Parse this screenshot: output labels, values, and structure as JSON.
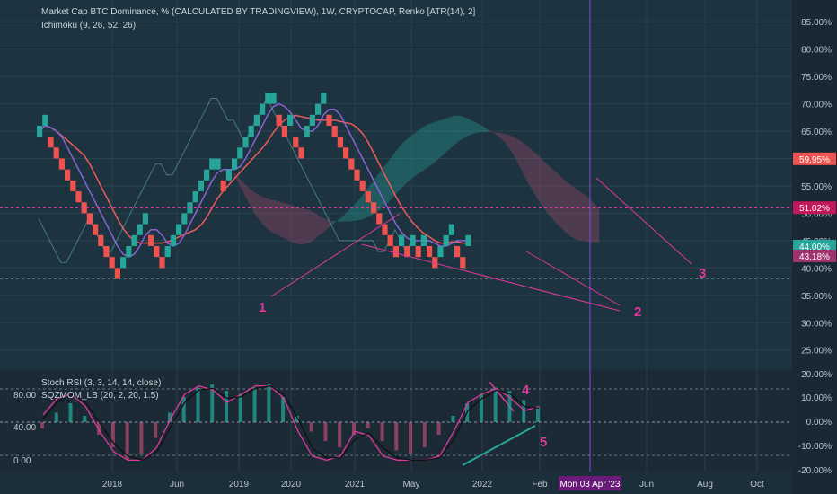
{
  "header": {
    "title": "Market Cap BTC Dominance, % (CALCULATED BY TRADINGVIEW), 1W, CRYPTOCAP, Renko [ATR(14), 2]",
    "indicator": "Ichimoku (9, 26, 52, 26)"
  },
  "lower_panel": {
    "stoch_label": "Stoch RSI (3, 3, 14, 14, close)",
    "mom_label": "SQZMOM_LB (20, 2, 20, 1.5)"
  },
  "colors": {
    "background": "#1b2e3a",
    "up_brick": "#26a69a",
    "down_brick": "#ef5350",
    "annotation": "#e0389c",
    "cloud_bull": "#26a69a",
    "cloud_bear": "#b04a6e",
    "ichimoku_base": "#f05a5a",
    "ichimoku_conv": "#8a63d2",
    "lagging": "#5fb0a8"
  },
  "chart_data": [
    {
      "type": "renko",
      "title": "Market Cap BTC Dominance, % (CALCULATED BY TRADINGVIEW), 1W, CRYPTOCAP, Renko [ATR(14), 2]",
      "x_ticks": [
        "2018",
        "Jun",
        "2019",
        "2020",
        "2021",
        "May",
        "2022",
        "Feb",
        "Jun",
        "Aug",
        "Oct"
      ],
      "y_ticks": [
        "85.00%",
        "80.00%",
        "75.00%",
        "70.00%",
        "65.00%",
        "60.00%",
        "55.00%",
        "50.00%",
        "45.00%",
        "40.00%",
        "35.00%",
        "30.00%",
        "25.00%"
      ],
      "ylim": [
        22,
        87
      ],
      "brick_size": 2,
      "bricks": [
        {
          "v": 64,
          "d": "up"
        },
        {
          "v": 66,
          "d": "up"
        },
        {
          "v": 64,
          "d": "down"
        },
        {
          "v": 62,
          "d": "down"
        },
        {
          "v": 60,
          "d": "down"
        },
        {
          "v": 58,
          "d": "down"
        },
        {
          "v": 56,
          "d": "down"
        },
        {
          "v": 54,
          "d": "down"
        },
        {
          "v": 52,
          "d": "down"
        },
        {
          "v": 50,
          "d": "down"
        },
        {
          "v": 48,
          "d": "down"
        },
        {
          "v": 46,
          "d": "down"
        },
        {
          "v": 44,
          "d": "down"
        },
        {
          "v": 42,
          "d": "down"
        },
        {
          "v": 40,
          "d": "down"
        },
        {
          "v": 40,
          "d": "up"
        },
        {
          "v": 42,
          "d": "up"
        },
        {
          "v": 44,
          "d": "up"
        },
        {
          "v": 46,
          "d": "up"
        },
        {
          "v": 48,
          "d": "up"
        },
        {
          "v": 46,
          "d": "down"
        },
        {
          "v": 44,
          "d": "down"
        },
        {
          "v": 42,
          "d": "down"
        },
        {
          "v": 42,
          "d": "up"
        },
        {
          "v": 44,
          "d": "up"
        },
        {
          "v": 46,
          "d": "up"
        },
        {
          "v": 48,
          "d": "up"
        },
        {
          "v": 50,
          "d": "up"
        },
        {
          "v": 52,
          "d": "up"
        },
        {
          "v": 54,
          "d": "up"
        },
        {
          "v": 56,
          "d": "up"
        },
        {
          "v": 58,
          "d": "up"
        },
        {
          "v": 58,
          "d": "up"
        },
        {
          "v": 56,
          "d": "down"
        },
        {
          "v": 56,
          "d": "up"
        },
        {
          "v": 58,
          "d": "up"
        },
        {
          "v": 60,
          "d": "up"
        },
        {
          "v": 62,
          "d": "up"
        },
        {
          "v": 64,
          "d": "up"
        },
        {
          "v": 66,
          "d": "up"
        },
        {
          "v": 68,
          "d": "up"
        },
        {
          "v": 70,
          "d": "up"
        },
        {
          "v": 70,
          "d": "up"
        },
        {
          "v": 68,
          "d": "down"
        },
        {
          "v": 66,
          "d": "down"
        },
        {
          "v": 66,
          "d": "up"
        },
        {
          "v": 64,
          "d": "down"
        },
        {
          "v": 62,
          "d": "down"
        },
        {
          "v": 64,
          "d": "up"
        },
        {
          "v": 66,
          "d": "up"
        },
        {
          "v": 68,
          "d": "up"
        },
        {
          "v": 70,
          "d": "up"
        },
        {
          "v": 68,
          "d": "down"
        },
        {
          "v": 66,
          "d": "down"
        },
        {
          "v": 64,
          "d": "down"
        },
        {
          "v": 62,
          "d": "down"
        },
        {
          "v": 60,
          "d": "down"
        },
        {
          "v": 58,
          "d": "down"
        },
        {
          "v": 56,
          "d": "down"
        },
        {
          "v": 54,
          "d": "down"
        },
        {
          "v": 52,
          "d": "down"
        },
        {
          "v": 50,
          "d": "down"
        },
        {
          "v": 48,
          "d": "down"
        },
        {
          "v": 46,
          "d": "down"
        },
        {
          "v": 44,
          "d": "down"
        },
        {
          "v": 44,
          "d": "up"
        },
        {
          "v": 44,
          "d": "down"
        },
        {
          "v": 44,
          "d": "up"
        },
        {
          "v": 44,
          "d": "down"
        },
        {
          "v": 44,
          "d": "up"
        },
        {
          "v": 44,
          "d": "down"
        },
        {
          "v": 42,
          "d": "down"
        },
        {
          "v": 42,
          "d": "up"
        },
        {
          "v": 44,
          "d": "up"
        },
        {
          "v": 46,
          "d": "up"
        },
        {
          "v": 44,
          "d": "down"
        },
        {
          "v": 42,
          "d": "down"
        },
        {
          "v": 44,
          "d": "up"
        }
      ],
      "price_labels": [
        "59.95%",
        "51.02%",
        "44.00%",
        "43.18%"
      ],
      "annotations": [
        "1",
        "2",
        "3"
      ],
      "crosshair_date": "Mon 03 Apr '23"
    },
    {
      "type": "line",
      "title": "Stoch RSI (3, 3, 14, 14, close)",
      "y_ticks_left": [
        "80.00",
        "40.00",
        "0.00"
      ],
      "y_ticks_right": [
        "20.00%",
        "10.00%",
        "0.00%",
        "-10.00%",
        "-20.00%"
      ],
      "ylim": [
        0,
        100
      ],
      "series": [
        {
          "values": [
            60,
            80,
            85,
            70,
            40,
            15,
            5,
            5,
            20,
            55,
            85,
            95,
            90,
            75,
            85,
            95,
            95,
            80,
            40,
            10,
            5,
            10,
            40,
            35,
            10,
            5,
            5,
            5,
            10,
            40,
            75,
            85,
            92,
            80,
            65,
            70
          ]
        },
        {
          "values": [
            55,
            75,
            85,
            75,
            50,
            25,
            10,
            5,
            15,
            45,
            75,
            90,
            92,
            80,
            82,
            92,
            95,
            85,
            55,
            20,
            8,
            8,
            30,
            38,
            20,
            8,
            5,
            5,
            8,
            30,
            65,
            80,
            90,
            85,
            70,
            68
          ]
        }
      ],
      "momentum": [
        -2,
        3,
        6,
        2,
        -4,
        -8,
        -12,
        -10,
        -5,
        3,
        8,
        11,
        12,
        10,
        9,
        11,
        12,
        8,
        2,
        -3,
        -6,
        -8,
        -4,
        -2,
        -6,
        -9,
        -10,
        -8,
        -4,
        2,
        6,
        9,
        11,
        10,
        7,
        5
      ],
      "annotations": [
        "4",
        "5"
      ]
    }
  ]
}
